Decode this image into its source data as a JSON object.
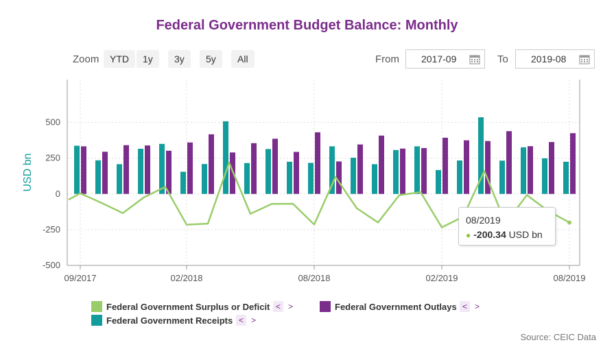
{
  "title": "Federal Government Budget Balance: Monthly",
  "zoom": {
    "label": "Zoom",
    "buttons": [
      "YTD",
      "1y",
      "3y",
      "5y",
      "All"
    ]
  },
  "range": {
    "from_label": "From",
    "from_value": "2017-09",
    "to_label": "To",
    "to_value": "2019-08"
  },
  "colors": {
    "surplus": "#9acd6a",
    "outlays": "#7b2d8b",
    "receipts": "#139c9c",
    "axis_title": "#139c9c"
  },
  "tooltip": {
    "date": "08/2019",
    "value": "-200.34",
    "unit": "USD bn"
  },
  "legend": {
    "surplus": "Federal Government Surplus or Deficit",
    "outlays": "Federal Government Outlays",
    "receipts": "Federal Government Receipts",
    "prev": "<",
    "next": ">"
  },
  "source": "Source: CEIC Data",
  "chart_data": {
    "type": "bar",
    "ylabel": "USD bn",
    "ylim": [
      -500,
      800
    ],
    "yticks": [
      -500,
      -250,
      0,
      250,
      500
    ],
    "ytick_labels": [
      "-500",
      "-250",
      "0",
      "250",
      "500"
    ],
    "xtick_labels": [
      "09/2017",
      "02/2018",
      "08/2018",
      "02/2019",
      "08/2019"
    ],
    "xtick_indices": [
      0,
      5,
      11,
      17,
      23
    ],
    "categories": [
      "09/2017",
      "10/2017",
      "11/2017",
      "12/2017",
      "01/2018",
      "02/2018",
      "03/2018",
      "04/2018",
      "05/2018",
      "06/2018",
      "07/2018",
      "08/2018",
      "09/2018",
      "10/2018",
      "11/2018",
      "12/2018",
      "01/2019",
      "02/2019",
      "03/2019",
      "04/2019",
      "05/2019",
      "06/2019",
      "07/2019",
      "08/2019"
    ],
    "series": [
      {
        "name": "Federal Government Receipts",
        "type": "bar",
        "values": [
          337,
          235,
          208,
          316,
          350,
          155,
          209,
          508,
          216,
          314,
          225,
          217,
          333,
          253,
          208,
          307,
          333,
          167,
          234,
          536,
          233,
          326,
          249,
          225
        ]
      },
      {
        "name": "Federal Government Outlays",
        "type": "bar",
        "values": [
          333,
          295,
          341,
          339,
          302,
          360,
          417,
          290,
          355,
          386,
          294,
          431,
          227,
          346,
          408,
          317,
          321,
          393,
          375,
          370,
          439,
          334,
          363,
          425
        ]
      },
      {
        "name": "Federal Government Surplus or Deficit",
        "type": "line",
        "values": [
          4,
          -63,
          -134,
          -23,
          49,
          -215,
          -208,
          218,
          -139,
          -70,
          -69,
          -214,
          119,
          -100,
          -200,
          -9,
          13,
          -234,
          -160,
          160,
          -207,
          -8,
          -119,
          -200
        ]
      }
    ],
    "grid": true,
    "legend_position": "bottom"
  }
}
